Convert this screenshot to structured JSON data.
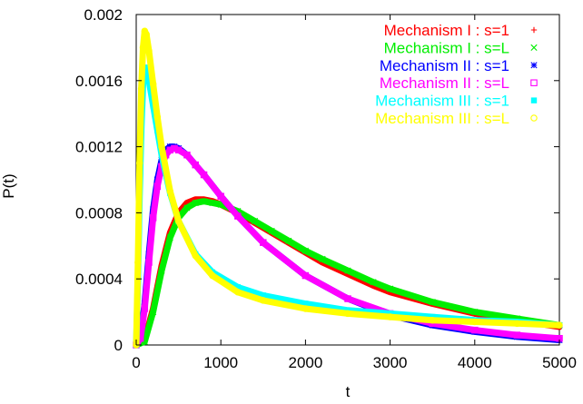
{
  "chart_data": {
    "type": "scatter",
    "title": "",
    "xlabel": "t",
    "ylabel": "P(t)",
    "xlim": [
      0,
      5000
    ],
    "ylim": [
      0,
      0.002
    ],
    "xticks": [
      "0",
      "1000",
      "2000",
      "3000",
      "4000",
      "5000"
    ],
    "yticks": [
      "0",
      "0.0004",
      "0.0008",
      "0.0012",
      "0.0016",
      "0.002"
    ],
    "legend_position": "top-right",
    "grid": false,
    "series": [
      {
        "name": "Mechanism I : s=1",
        "color": "#ff0000",
        "marker": "plus",
        "x": [
          0,
          100,
          200,
          300,
          400,
          500,
          600,
          700,
          800,
          900,
          1000,
          1200,
          1400,
          1600,
          1800,
          2000,
          2200,
          2500,
          2800,
          3000,
          3500,
          4000,
          4500,
          5000
        ],
        "y": [
          0,
          3e-05,
          0.00022,
          0.00048,
          0.00068,
          0.0008,
          0.00086,
          0.00088,
          0.00088,
          0.00087,
          0.00085,
          0.0008,
          0.00074,
          0.00068,
          0.00062,
          0.00056,
          0.0005,
          0.00043,
          0.00036,
          0.00032,
          0.00025,
          0.00019,
          0.00015,
          0.00011
        ]
      },
      {
        "name": "Mechanism I : s=L",
        "color": "#00ee00",
        "marker": "x",
        "x": [
          0,
          100,
          200,
          300,
          400,
          500,
          600,
          700,
          800,
          900,
          1000,
          1200,
          1400,
          1600,
          1800,
          2000,
          2200,
          2500,
          2800,
          3000,
          3500,
          4000,
          4500,
          5000
        ],
        "y": [
          0,
          2e-05,
          0.0002,
          0.00045,
          0.00065,
          0.00077,
          0.00083,
          0.00086,
          0.00087,
          0.00086,
          0.00085,
          0.00081,
          0.00075,
          0.00069,
          0.00063,
          0.00057,
          0.00052,
          0.00045,
          0.00038,
          0.00034,
          0.00026,
          0.0002,
          0.00016,
          0.00012
        ]
      },
      {
        "name": "Mechanism II : s=1",
        "color": "#0000ff",
        "marker": "star",
        "x": [
          0,
          50,
          100,
          150,
          200,
          250,
          300,
          350,
          400,
          450,
          500,
          600,
          700,
          800,
          1000,
          1200,
          1500,
          2000,
          2500,
          3000,
          3500,
          4000,
          4500,
          5000
        ],
        "y": [
          0,
          5e-05,
          0.00025,
          0.00055,
          0.00082,
          0.001,
          0.00112,
          0.00118,
          0.0012,
          0.0012,
          0.00119,
          0.00115,
          0.00109,
          0.00103,
          0.0009,
          0.00078,
          0.00062,
          0.00042,
          0.00028,
          0.00018,
          0.00012,
          8e-05,
          5e-05,
          3e-05
        ]
      },
      {
        "name": "Mechanism II : s=L",
        "color": "#ff00ff",
        "marker": "square",
        "x": [
          0,
          50,
          100,
          150,
          200,
          250,
          300,
          350,
          400,
          450,
          500,
          600,
          700,
          800,
          1000,
          1200,
          1500,
          2000,
          2500,
          3000,
          3500,
          4000,
          4500,
          5000
        ],
        "y": [
          0,
          4e-05,
          0.00022,
          0.0005,
          0.00077,
          0.00096,
          0.00108,
          0.00115,
          0.00118,
          0.00119,
          0.00118,
          0.00115,
          0.00109,
          0.00103,
          0.0009,
          0.00078,
          0.00062,
          0.00042,
          0.00028,
          0.00019,
          0.00013,
          9e-05,
          6e-05,
          4e-05
        ]
      },
      {
        "name": "Mechanism III : s=1",
        "color": "#00ffff",
        "marker": "filled-square",
        "x": [
          0,
          20,
          40,
          60,
          80,
          100,
          120,
          150,
          200,
          250,
          300,
          400,
          500,
          700,
          900,
          1200,
          1500,
          2000,
          2500,
          3000,
          3500,
          4000,
          4500,
          5000
        ],
        "y": [
          0,
          0.0004,
          0.0009,
          0.0013,
          0.00158,
          0.00168,
          0.00167,
          0.0016,
          0.00145,
          0.0013,
          0.00115,
          0.00092,
          0.00075,
          0.00055,
          0.00044,
          0.00035,
          0.0003,
          0.00025,
          0.00021,
          0.00019,
          0.00017,
          0.00015,
          0.00014,
          0.00012
        ]
      },
      {
        "name": "Mechanism III : s=L",
        "color": "#ffff00",
        "marker": "circle",
        "x": [
          0,
          20,
          40,
          60,
          80,
          100,
          120,
          150,
          200,
          250,
          300,
          400,
          500,
          700,
          900,
          1200,
          1500,
          2000,
          2500,
          3000,
          3500,
          4000,
          4500,
          5000
        ],
        "y": [
          0,
          0.0005,
          0.0011,
          0.00155,
          0.0018,
          0.0019,
          0.00188,
          0.00178,
          0.00158,
          0.00138,
          0.0012,
          0.00093,
          0.00075,
          0.00054,
          0.00042,
          0.00032,
          0.00027,
          0.00022,
          0.00019,
          0.00017,
          0.00015,
          0.00014,
          0.00013,
          0.00012
        ]
      }
    ]
  }
}
